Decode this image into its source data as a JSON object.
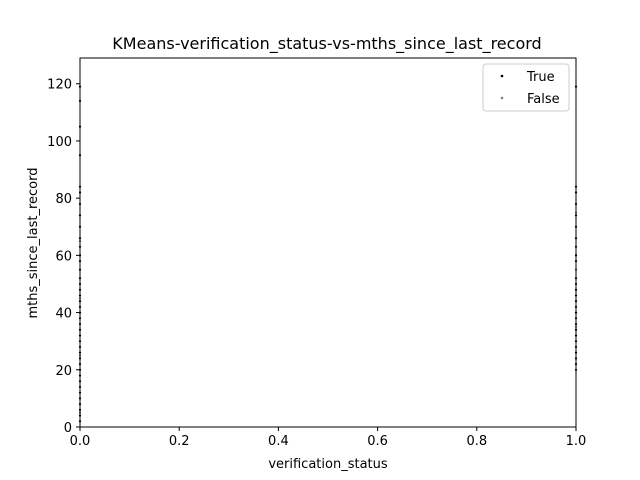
{
  "chart_data": {
    "type": "scatter",
    "title": "KMeans-verification_status-vs-mths_since_last_record",
    "xlabel": "verification_status",
    "ylabel": "mths_since_last_record",
    "xlim": [
      0,
      1
    ],
    "ylim": [
      0,
      129
    ],
    "xticks": [
      0,
      0.2,
      0.4,
      0.6,
      0.8,
      1
    ],
    "xtick_labels": [
      "0.0",
      "0.2",
      "0.4",
      "0.6",
      "0.8",
      "1.0"
    ],
    "yticks": [
      0,
      20,
      40,
      60,
      80,
      100,
      120
    ],
    "ytick_labels": [
      "0",
      "20",
      "40",
      "60",
      "80",
      "100",
      "120"
    ],
    "legend": "top-right",
    "grid": false,
    "series": [
      {
        "name": "True",
        "color": "#000000",
        "x": [
          0,
          0,
          0,
          0,
          0,
          0,
          0,
          0,
          0,
          0,
          0,
          0,
          0,
          0,
          0,
          0,
          0,
          0,
          0,
          0,
          0,
          0,
          0,
          0,
          0,
          0,
          0,
          0,
          0,
          0,
          0,
          0,
          0,
          0,
          0,
          0,
          0,
          0,
          0,
          0,
          1,
          1,
          1,
          1,
          1,
          1,
          1,
          1,
          1,
          1,
          1,
          1,
          1,
          1,
          1,
          1,
          1,
          1,
          1,
          1,
          1,
          1,
          1,
          1,
          1,
          1,
          1,
          1
        ],
        "y": [
          2,
          4,
          6,
          8,
          10,
          12,
          14,
          16,
          18,
          20,
          22,
          24,
          26,
          28,
          30,
          32,
          34,
          36,
          38,
          40,
          42,
          44,
          46,
          48,
          50,
          52,
          55,
          58,
          60,
          63,
          66,
          70,
          74,
          78,
          82,
          84,
          95,
          105,
          114,
          119,
          20,
          22,
          24,
          26,
          28,
          30,
          32,
          34,
          36,
          38,
          40,
          42,
          44,
          46,
          48,
          50,
          52,
          55,
          58,
          60,
          63,
          66,
          70,
          74,
          78,
          82,
          84,
          119
        ]
      },
      {
        "name": "False",
        "color": "#808080",
        "x": [
          0,
          0,
          0,
          0,
          1,
          1,
          1
        ],
        "y": [
          5,
          25,
          45,
          65,
          35,
          55,
          75
        ]
      }
    ]
  }
}
